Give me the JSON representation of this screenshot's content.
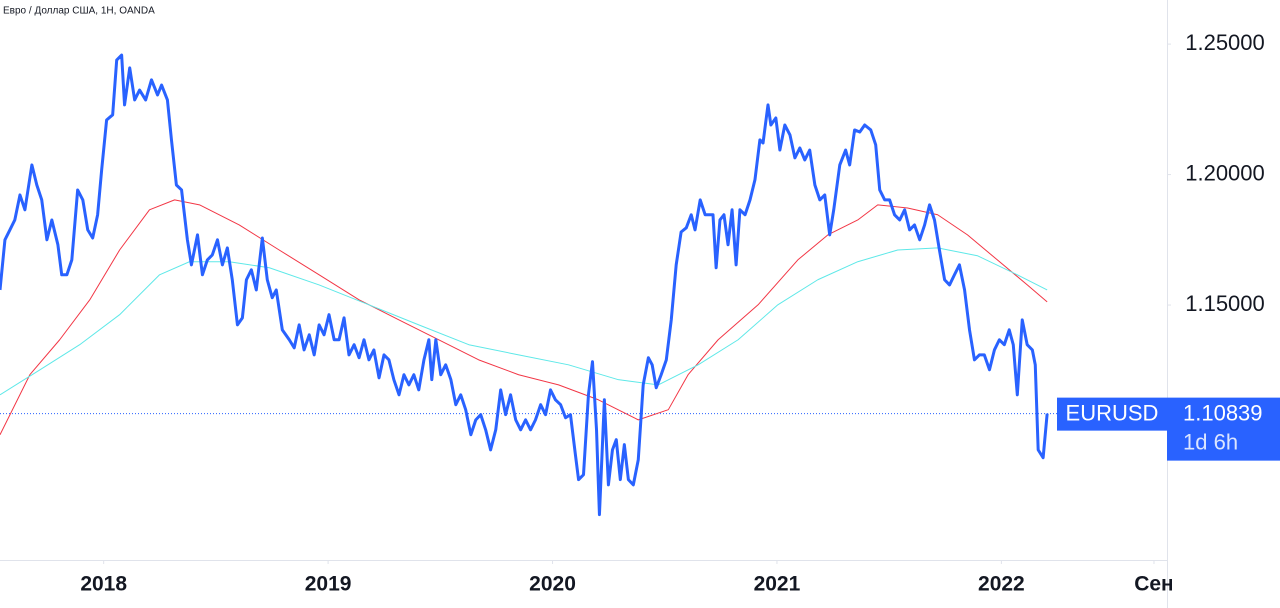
{
  "chart_data": {
    "type": "line",
    "title": "Евро / Доллар США, 1H, OANDA",
    "xlim": [
      2017.538,
      2022.738
    ],
    "ylim": [
      1.0523,
      1.2669
    ],
    "xticks": [
      2018,
      2019,
      2020,
      2021,
      2022,
      {
        "value": 2022.68,
        "label": "Сен"
      }
    ],
    "yticks": [
      {
        "value": 1.25,
        "label": "1.25000"
      },
      {
        "value": 1.2,
        "label": "1.20000"
      },
      {
        "value": 1.15,
        "label": "1.15000"
      }
    ],
    "last_price": {
      "label": "EURUSD",
      "value": 1.10839,
      "value_label": "1.10839",
      "countdown": "1d 6h"
    },
    "series": [
      {
        "color": "#f23645",
        "x": [
          2017.538,
          2017.671,
          2017.804,
          2017.938,
          2018.071,
          2018.204,
          2018.316,
          2018.427,
          2018.604,
          2018.782,
          2018.96,
          2019.138,
          2019.316,
          2019.493,
          2019.671,
          2019.849,
          2020.027,
          2020.204,
          2020.382,
          2020.516,
          2020.604,
          2020.738,
          2020.916,
          2021.093,
          2021.227,
          2021.36,
          2021.449,
          2021.582,
          2021.716,
          2021.849,
          2021.982,
          2022.116,
          2022.204
        ],
        "values": [
          1.1003,
          1.1233,
          1.1367,
          1.152,
          1.1711,
          1.1865,
          1.1903,
          1.1884,
          1.1807,
          1.1711,
          1.1616,
          1.152,
          1.1443,
          1.1367,
          1.129,
          1.1233,
          1.1194,
          1.1137,
          1.106,
          1.1099,
          1.1233,
          1.1367,
          1.1501,
          1.1673,
          1.1769,
          1.1826,
          1.1884,
          1.1872,
          1.1846,
          1.1769,
          1.1673,
          1.1577,
          1.1512
        ]
      },
      {
        "color": "#5ee8e8",
        "x": [
          2017.538,
          2017.716,
          2017.893,
          2018.071,
          2018.249,
          2018.382,
          2018.56,
          2018.738,
          2018.96,
          2019.182,
          2019.404,
          2019.627,
          2019.849,
          2020.071,
          2020.293,
          2020.471,
          2020.649,
          2020.827,
          2021.004,
          2021.182,
          2021.36,
          2021.538,
          2021.716,
          2021.893,
          2022.071,
          2022.204
        ],
        "values": [
          1.1156,
          1.1252,
          1.1348,
          1.1463,
          1.1616,
          1.1666,
          1.1666,
          1.1643,
          1.1577,
          1.1501,
          1.1424,
          1.1348,
          1.1309,
          1.1271,
          1.1214,
          1.1194,
          1.1271,
          1.1367,
          1.1501,
          1.1597,
          1.1666,
          1.1711,
          1.1719,
          1.1689,
          1.1616,
          1.1558
        ]
      },
      {
        "color": "#2962ff",
        "x": [
          2017.538,
          2017.56,
          2017.582,
          2017.604,
          2017.627,
          2017.649,
          2017.68,
          2017.702,
          2017.724,
          2017.747,
          2017.769,
          2017.796,
          2017.813,
          2017.836,
          2017.858,
          2017.884,
          2017.907,
          2017.929,
          2017.951,
          2017.973,
          2017.991,
          2018.013,
          2018.04,
          2018.058,
          2018.08,
          2018.093,
          2018.116,
          2018.138,
          2018.16,
          2018.187,
          2018.213,
          2018.24,
          2018.258,
          2018.284,
          2018.302,
          2018.324,
          2018.347,
          2018.373,
          2018.391,
          2018.418,
          2018.44,
          2018.462,
          2018.484,
          2018.507,
          2018.529,
          2018.551,
          2018.573,
          2018.596,
          2018.618,
          2018.636,
          2018.658,
          2018.68,
          2018.707,
          2018.729,
          2018.751,
          2018.769,
          2018.796,
          2018.827,
          2018.849,
          2018.871,
          2018.893,
          2018.916,
          2018.938,
          2018.96,
          2018.982,
          2019.004,
          2019.027,
          2019.049,
          2019.071,
          2019.093,
          2019.116,
          2019.138,
          2019.16,
          2019.182,
          2019.204,
          2019.227,
          2019.249,
          2019.271,
          2019.293,
          2019.316,
          2019.338,
          2019.36,
          2019.382,
          2019.404,
          2019.427,
          2019.449,
          2019.462,
          2019.48,
          2019.502,
          2019.524,
          2019.547,
          2019.569,
          2019.591,
          2019.613,
          2019.636,
          2019.658,
          2019.68,
          2019.702,
          2019.724,
          2019.747,
          2019.769,
          2019.791,
          2019.813,
          2019.836,
          2019.858,
          2019.88,
          2019.902,
          2019.924,
          2019.947,
          2019.969,
          2019.991,
          2020.013,
          2020.036,
          2020.058,
          2020.08,
          2020.102,
          2020.116,
          2020.138,
          2020.16,
          2020.178,
          2020.196,
          2020.209,
          2020.231,
          2020.249,
          2020.267,
          2020.284,
          2020.302,
          2020.32,
          2020.338,
          2020.36,
          2020.382,
          2020.404,
          2020.427,
          2020.444,
          2020.462,
          2020.484,
          2020.507,
          2020.529,
          2020.551,
          2020.573,
          2020.596,
          2020.618,
          2020.635,
          2020.658,
          2020.68,
          2020.702,
          2020.715,
          2020.729,
          2020.746,
          2020.764,
          2020.782,
          2020.8,
          2020.818,
          2020.835,
          2020.858,
          2020.88,
          2020.902,
          2020.924,
          2020.938,
          2020.96,
          2020.973,
          2020.995,
          2021.013,
          2021.035,
          2021.058,
          2021.08,
          2021.102,
          2021.124,
          2021.146,
          2021.169,
          2021.191,
          2021.213,
          2021.235,
          2021.253,
          2021.28,
          2021.306,
          2021.324,
          2021.346,
          2021.369,
          2021.391,
          2021.418,
          2021.44,
          2021.458,
          2021.48,
          2021.502,
          2021.524,
          2021.547,
          2021.569,
          2021.591,
          2021.613,
          2021.636,
          2021.658,
          2021.68,
          2021.702,
          2021.724,
          2021.747,
          2021.769,
          2021.791,
          2021.813,
          2021.836,
          2021.858,
          2021.88,
          2021.902,
          2021.924,
          2021.947,
          2021.969,
          2021.991,
          2022.013,
          2022.035,
          2022.053,
          2022.071,
          2022.093,
          2022.115,
          2022.138,
          2022.151,
          2022.164,
          2022.186,
          2022.204
        ],
        "values": [
          1.1558,
          1.175,
          1.1788,
          1.1826,
          1.1922,
          1.1865,
          1.2037,
          1.196,
          1.1903,
          1.175,
          1.1826,
          1.1731,
          1.1616,
          1.1616,
          1.1673,
          1.1941,
          1.1903,
          1.1788,
          1.1757,
          1.1846,
          1.2018,
          1.2209,
          1.2229,
          1.2439,
          1.2458,
          1.2267,
          1.2409,
          1.2286,
          1.2324,
          1.2286,
          1.2363,
          1.2305,
          1.2343,
          1.2286,
          1.2133,
          1.196,
          1.1941,
          1.175,
          1.1654,
          1.1769,
          1.1616,
          1.1673,
          1.1692,
          1.175,
          1.1654,
          1.1719,
          1.1597,
          1.1424,
          1.1451,
          1.1597,
          1.1635,
          1.1558,
          1.1757,
          1.1597,
          1.1528,
          1.1558,
          1.1405,
          1.1367,
          1.1336,
          1.1424,
          1.1328,
          1.1386,
          1.1309,
          1.1424,
          1.1386,
          1.1463,
          1.1367,
          1.1367,
          1.1451,
          1.1309,
          1.1348,
          1.1298,
          1.1367,
          1.129,
          1.1328,
          1.1221,
          1.1309,
          1.129,
          1.1214,
          1.1156,
          1.1233,
          1.1194,
          1.1233,
          1.1175,
          1.129,
          1.1367,
          1.1214,
          1.1367,
          1.1233,
          1.1271,
          1.1214,
          1.1118,
          1.1156,
          1.1099,
          1.1003,
          1.106,
          1.108,
          1.1022,
          1.0945,
          1.1022,
          1.1175,
          1.108,
          1.1156,
          1.106,
          1.1022,
          1.106,
          1.1022,
          1.106,
          1.1118,
          1.108,
          1.1175,
          1.1137,
          1.1118,
          1.1068,
          1.108,
          1.0926,
          1.0831,
          1.085,
          1.1156,
          1.1283,
          1.1022,
          1.0697,
          1.1137,
          1.0811,
          1.0945,
          1.0984,
          1.0831,
          1.0965,
          1.0831,
          1.0811,
          1.0907,
          1.1194,
          1.1298,
          1.1271,
          1.1183,
          1.1233,
          1.129,
          1.1443,
          1.1654,
          1.178,
          1.1796,
          1.1846,
          1.1788,
          1.1903,
          1.1846,
          1.1846,
          1.1846,
          1.1643,
          1.1826,
          1.1846,
          1.1731,
          1.1865,
          1.1654,
          1.1865,
          1.1846,
          1.1903,
          1.198,
          1.2133,
          1.2121,
          1.2267,
          1.219,
          1.2217,
          1.2094,
          1.219,
          1.2152,
          1.2064,
          1.2102,
          1.2056,
          1.2094,
          1.196,
          1.1903,
          1.1922,
          1.1769,
          1.1865,
          1.2037,
          1.2094,
          1.2037,
          1.2171,
          1.2163,
          1.219,
          1.2171,
          1.2114,
          1.1941,
          1.1903,
          1.1903,
          1.1846,
          1.1826,
          1.1865,
          1.1788,
          1.1807,
          1.175,
          1.1807,
          1.1884,
          1.1826,
          1.1711,
          1.1597,
          1.1577,
          1.1616,
          1.1654,
          1.1558,
          1.1405,
          1.129,
          1.1309,
          1.1309,
          1.1252,
          1.1328,
          1.1367,
          1.1348,
          1.1405,
          1.1348,
          1.1156,
          1.1443,
          1.1348,
          1.1328,
          1.1271,
          1.0945,
          1.0915,
          1.1084
        ]
      }
    ]
  }
}
